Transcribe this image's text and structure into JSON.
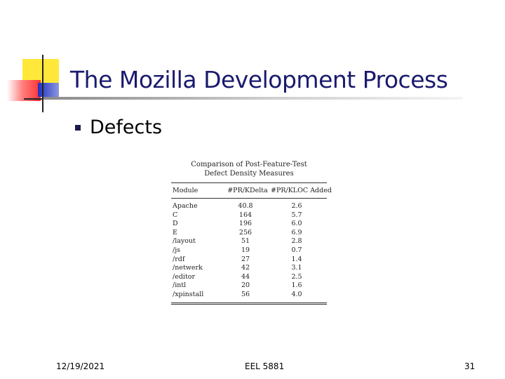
{
  "slide": {
    "title": "The Mozilla Development Process",
    "bullet": "Defects"
  },
  "table": {
    "caption_line1": "Comparison of Post-Feature-Test",
    "caption_line2": "Defect Density Measures",
    "headers": [
      "Module",
      "#PR/KDelta",
      "#PR/KLOC Added"
    ],
    "rows": [
      [
        "Apache",
        "40.8",
        "2.6"
      ],
      [
        "C",
        "164",
        "5.7"
      ],
      [
        "D",
        "196",
        "6.0"
      ],
      [
        "E",
        "256",
        "6.9"
      ],
      [
        "/layout",
        "51",
        "2.8"
      ],
      [
        "/js",
        "19",
        "0.7"
      ],
      [
        "/rdf",
        "27",
        "1.4"
      ],
      [
        "/netwerk",
        "42",
        "3.1"
      ],
      [
        "/editor",
        "44",
        "2.5"
      ],
      [
        "/intl",
        "20",
        "1.6"
      ],
      [
        "/xpinstall",
        "56",
        "4.0"
      ]
    ]
  },
  "footer": {
    "date": "12/19/2021",
    "course": "EEL 5881",
    "page": "31"
  },
  "colors": {
    "title": "#1a1a6e",
    "logo_yellow": "#ffe83a",
    "logo_red": "#ff3030",
    "logo_blue": "#2030c0"
  }
}
